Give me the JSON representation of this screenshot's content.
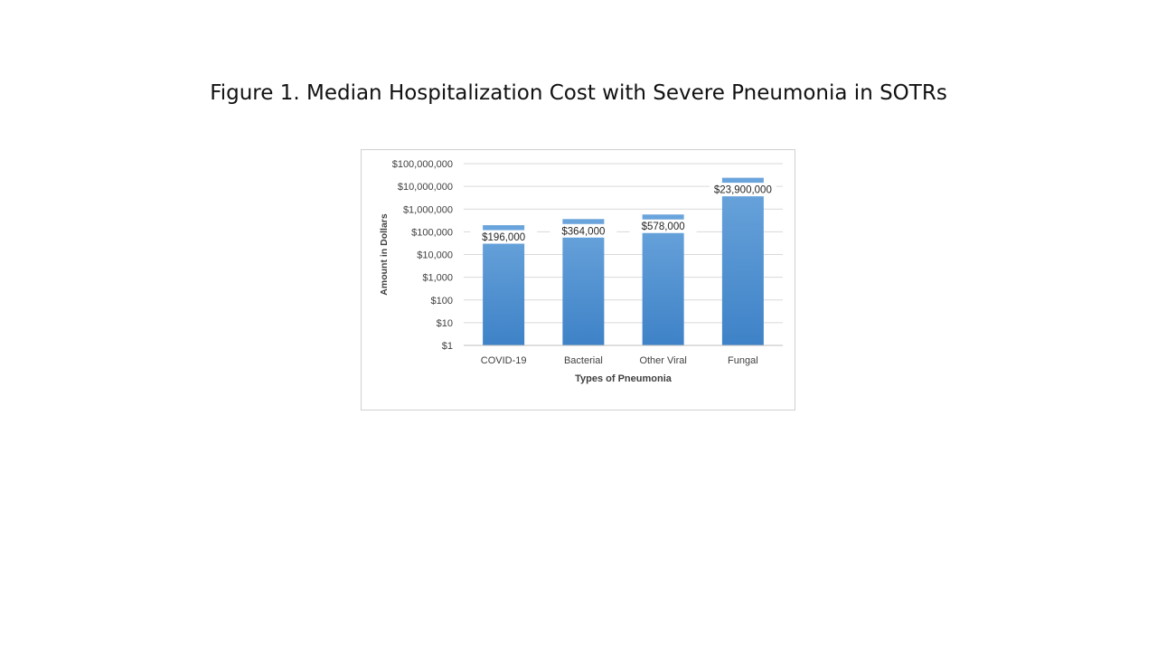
{
  "slide": {
    "title": "Figure 1. Median Hospitalization Cost with Severe Pneumonia in SOTRs"
  },
  "chart_data": {
    "type": "bar",
    "title": "",
    "xlabel": "Types of Pneumonia",
    "ylabel": "Amount in Dollars",
    "y_scale": "log",
    "ylim": [
      1,
      100000000
    ],
    "y_ticks": [
      1,
      10,
      100,
      1000,
      10000,
      100000,
      1000000,
      10000000,
      100000000
    ],
    "y_tick_labels": [
      "$1",
      "$10",
      "$100",
      "$1,000",
      "$10,000",
      "$100,000",
      "$1,000,000",
      "$10,000,000",
      "$100,000,000"
    ],
    "categories": [
      "COVID-19",
      "Bacterial",
      "Other Viral",
      "Fungal"
    ],
    "values": [
      196000,
      364000,
      578000,
      23900000
    ],
    "data_labels": [
      "$196,000",
      "$364,000",
      "$578,000",
      "$23,900,000"
    ],
    "grid": true,
    "legend": "none",
    "colors": {
      "bar": "#5b9bd5",
      "bar_dark": "#3f83c8",
      "grid": "#d9d9d9",
      "axis": "#bfbfbf",
      "text": "#404040"
    }
  }
}
